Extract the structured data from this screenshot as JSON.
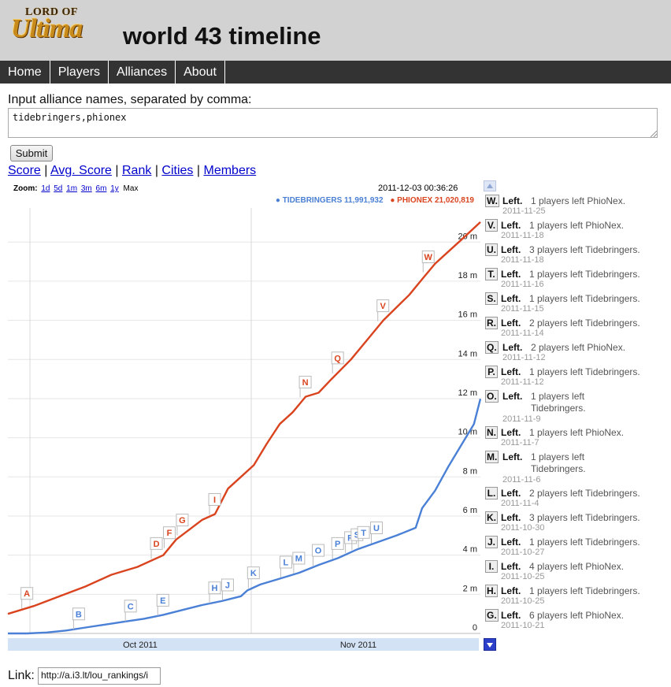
{
  "header": {
    "logo_top": "LORD OF",
    "logo_main": "Ultima",
    "title": "world 43 timeline"
  },
  "nav": {
    "items": [
      "Home",
      "Players",
      "Alliances",
      "About"
    ]
  },
  "form": {
    "label": "Input alliance names, separated by comma:",
    "value": "tidebringers,phionex",
    "submit_label": "Submit"
  },
  "metrics": {
    "links": [
      "Score",
      "Avg. Score",
      "Rank",
      "Cities",
      "Members"
    ],
    "separator": "|"
  },
  "chart_toolbar": {
    "zoom_label": "Zoom:",
    "zoom_options": [
      "1d",
      "5d",
      "1m",
      "3m",
      "6m",
      "1y"
    ],
    "zoom_current": "Max",
    "timestamp": "2011-12-03 00:36:26"
  },
  "legend": {
    "tidebringers": "TIDEBRINGERS 11,991,932",
    "phionex": "PHIONEX 21,020,819"
  },
  "chart_data": {
    "type": "line",
    "x_tick_labels": [
      "Oct 2011",
      "Nov 2011"
    ],
    "y_tick_labels": [
      "0",
      "2 m",
      "4 m",
      "6 m",
      "8 m",
      "10 m",
      "12 m",
      "14 m",
      "16 m",
      "18 m",
      "20 m"
    ],
    "ylim": [
      0,
      21.5
    ],
    "y_unit": "m",
    "grid": true,
    "colors": {
      "tidebringers": "#4a80d6",
      "phionex": "#d9441f"
    },
    "series": [
      {
        "name": "TIDEBRINGERS",
        "color": "#4a80d6",
        "points": [
          [
            0,
            0.0
          ],
          [
            3,
            0.0
          ],
          [
            6,
            0.05
          ],
          [
            9,
            0.15
          ],
          [
            12,
            0.3
          ],
          [
            15,
            0.45
          ],
          [
            18,
            0.6
          ],
          [
            21,
            0.75
          ],
          [
            24,
            0.95
          ],
          [
            27,
            1.2
          ],
          [
            30,
            1.45
          ],
          [
            33,
            1.65
          ],
          [
            36,
            1.9
          ],
          [
            37,
            2.2
          ],
          [
            39,
            2.5
          ],
          [
            42,
            2.8
          ],
          [
            45,
            3.1
          ],
          [
            48,
            3.5
          ],
          [
            51,
            3.85
          ],
          [
            54,
            4.3
          ],
          [
            57,
            4.65
          ],
          [
            60,
            5.0
          ],
          [
            63,
            5.4
          ],
          [
            64,
            6.4
          ],
          [
            66,
            7.3
          ],
          [
            68,
            8.5
          ],
          [
            70,
            9.6
          ],
          [
            72,
            10.7
          ],
          [
            73,
            11.99
          ]
        ]
      },
      {
        "name": "PHIONEX",
        "color": "#d9441f",
        "points": [
          [
            0,
            1.0
          ],
          [
            4,
            1.4
          ],
          [
            8,
            1.9
          ],
          [
            12,
            2.4
          ],
          [
            16,
            3.0
          ],
          [
            20,
            3.4
          ],
          [
            24,
            4.0
          ],
          [
            26,
            4.8
          ],
          [
            28,
            5.3
          ],
          [
            30,
            5.8
          ],
          [
            32,
            6.1
          ],
          [
            34,
            7.4
          ],
          [
            36,
            8.0
          ],
          [
            38,
            8.6
          ],
          [
            40,
            9.7
          ],
          [
            42,
            10.7
          ],
          [
            44,
            11.3
          ],
          [
            46,
            12.1
          ],
          [
            48,
            12.3
          ],
          [
            50,
            13.0
          ],
          [
            53,
            14.0
          ],
          [
            56,
            15.2
          ],
          [
            58,
            16.0
          ],
          [
            62,
            17.3
          ],
          [
            64,
            18.1
          ],
          [
            66,
            18.9
          ],
          [
            68,
            19.5
          ],
          [
            70,
            20.1
          ],
          [
            73,
            21.02
          ]
        ]
      }
    ],
    "annotations": [
      {
        "letter": "A",
        "series": "PHIONEX",
        "x": 3
      },
      {
        "letter": "B",
        "series": "TIDEBRINGERS",
        "x": 11
      },
      {
        "letter": "C",
        "series": "TIDEBRINGERS",
        "x": 19
      },
      {
        "letter": "D",
        "series": "PHIONEX",
        "x": 23
      },
      {
        "letter": "E",
        "series": "TIDEBRINGERS",
        "x": 24
      },
      {
        "letter": "F",
        "series": "PHIONEX",
        "x": 25
      },
      {
        "letter": "G",
        "series": "PHIONEX",
        "x": 27
      },
      {
        "letter": "H",
        "series": "TIDEBRINGERS",
        "x": 32
      },
      {
        "letter": "I",
        "series": "PHIONEX",
        "x": 32
      },
      {
        "letter": "J",
        "series": "TIDEBRINGERS",
        "x": 34
      },
      {
        "letter": "K",
        "series": "TIDEBRINGERS",
        "x": 38
      },
      {
        "letter": "L",
        "series": "TIDEBRINGERS",
        "x": 43
      },
      {
        "letter": "M",
        "series": "TIDEBRINGERS",
        "x": 45
      },
      {
        "letter": "N",
        "series": "PHIONEX",
        "x": 46
      },
      {
        "letter": "O",
        "series": "TIDEBRINGERS",
        "x": 48
      },
      {
        "letter": "P",
        "series": "TIDEBRINGERS",
        "x": 51
      },
      {
        "letter": "Q",
        "series": "PHIONEX",
        "x": 51
      },
      {
        "letter": "R",
        "series": "TIDEBRINGERS",
        "x": 53
      },
      {
        "letter": "S",
        "series": "TIDEBRINGERS",
        "x": 54
      },
      {
        "letter": "T",
        "series": "TIDEBRINGERS",
        "x": 55
      },
      {
        "letter": "U",
        "series": "TIDEBRINGERS",
        "x": 57
      },
      {
        "letter": "V",
        "series": "PHIONEX",
        "x": 58
      },
      {
        "letter": "W",
        "series": "PHIONEX",
        "x": 65
      }
    ]
  },
  "events": [
    {
      "letter": "W.",
      "type": "Left.",
      "desc": "1 players left PhioNex.",
      "date": "2011-11-25"
    },
    {
      "letter": "V.",
      "type": "Left.",
      "desc": "1 players left PhioNex.",
      "date": "2011-11-18"
    },
    {
      "letter": "U.",
      "type": "Left.",
      "desc": "3 players left Tidebringers.",
      "date": "2011-11-18"
    },
    {
      "letter": "T.",
      "type": "Left.",
      "desc": "1 players left Tidebringers.",
      "date": "2011-11-16"
    },
    {
      "letter": "S.",
      "type": "Left.",
      "desc": "1 players left Tidebringers.",
      "date": "2011-11-15"
    },
    {
      "letter": "R.",
      "type": "Left.",
      "desc": "2 players left Tidebringers.",
      "date": "2011-11-14"
    },
    {
      "letter": "Q.",
      "type": "Left.",
      "desc": "2 players left PhioNex.",
      "date": "2011-11-12"
    },
    {
      "letter": "P.",
      "type": "Left.",
      "desc": "1 players left Tidebringers.",
      "date": "2011-11-12"
    },
    {
      "letter": "O.",
      "type": "Left.",
      "desc": "1 players left Tidebringers.",
      "date": "2011-11-9",
      "wrap": true
    },
    {
      "letter": "N.",
      "type": "Left.",
      "desc": "1 players left PhioNex.",
      "date": "2011-11-7"
    },
    {
      "letter": "M.",
      "type": "Left.",
      "desc": "1 players left Tidebringers.",
      "date": "2011-11-6",
      "wrap": true
    },
    {
      "letter": "L.",
      "type": "Left.",
      "desc": "2 players left Tidebringers.",
      "date": "2011-11-4"
    },
    {
      "letter": "K.",
      "type": "Left.",
      "desc": "3 players left Tidebringers.",
      "date": "2011-10-30"
    },
    {
      "letter": "J.",
      "type": "Left.",
      "desc": "1 players left Tidebringers.",
      "date": "2011-10-27"
    },
    {
      "letter": "I.",
      "type": "Left.",
      "desc": "4 players left PhioNex.",
      "date": "2011-10-25"
    },
    {
      "letter": "H.",
      "type": "Left.",
      "desc": "1 players left Tidebringers.",
      "date": "2011-10-25"
    },
    {
      "letter": "G.",
      "type": "Left.",
      "desc": "6 players left PhioNex.",
      "date": "2011-10-21"
    }
  ],
  "link": {
    "label": "Link:",
    "value": "http://a.i3.lt/lou_rankings/i"
  }
}
